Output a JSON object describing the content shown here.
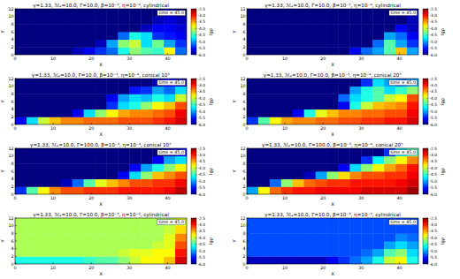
{
  "chart_data": [
    {
      "type": "heatmap",
      "title": "γ=1.33, ℳₐ=10.0, Γ=10.0, β=10⁻³, η=10⁻⁴, cylindrical",
      "xlabel": "X",
      "ylabel": "Y",
      "annotation": "time = 45.0",
      "xlim": [
        0,
        45
      ],
      "ylim": [
        0,
        12
      ],
      "xticks": [
        0,
        10,
        20,
        30,
        40
      ],
      "yticks": [
        0,
        2,
        4,
        6,
        8,
        10,
        12
      ],
      "colorbar_label": "lgρ",
      "zlim": [
        -6,
        -2.5
      ],
      "zticks": [
        {
          "value": -6,
          "label": "-6.0"
        },
        -5.5,
        {
          "value": -5,
          "label": "-5.0"
        },
        -4.5,
        {
          "value": -4,
          "label": "-4.0"
        },
        -3.5,
        {
          "value": -3,
          "label": "-3.0"
        },
        -2.5
      ],
      "cells": [
        [
          -6,
          -6,
          -6,
          -6,
          -6,
          -5.8,
          -5.6,
          -5.4,
          -5.2,
          -4.6,
          -4.2,
          -4.4,
          -4.5,
          -3.8,
          -5.2
        ],
        [
          -6,
          -6,
          -6,
          -6,
          -6,
          -6,
          -6,
          -5.8,
          -5.0,
          -4.2,
          -4.0,
          -4.8,
          -4.3,
          -5.0,
          -5.4
        ],
        [
          -6,
          -6,
          -6,
          -6,
          -6,
          -6,
          -6,
          -6,
          -6,
          -5.2,
          -4.6,
          -4.8,
          -5.4,
          -5.5,
          -5.6
        ],
        [
          -6,
          -6,
          -6,
          -6,
          -6,
          -6,
          -6,
          -6,
          -6,
          -6,
          -6,
          -5.8,
          -5.6,
          -5.6,
          -5.7
        ],
        [
          -6,
          -6,
          -6,
          -6,
          -6,
          -6,
          -6,
          -6,
          -6,
          -6,
          -6,
          -6,
          -5.8,
          -5.7,
          -5.8
        ],
        [
          -6,
          -6,
          -6,
          -6,
          -6,
          -6,
          -6,
          -6,
          -6,
          -6,
          -6,
          -6,
          -6,
          -5.8,
          -6
        ]
      ]
    },
    {
      "type": "heatmap",
      "title": "γ=1.33, ℳₐ=10.0, Γ=10.0, β=10⁻⁵, η=10⁻⁴, cylindrical",
      "xlabel": "X",
      "ylabel": "Y",
      "annotation": "time = 45.0",
      "xlim": [
        0,
        45
      ],
      "ylim": [
        0,
        12
      ],
      "xticks": [
        0,
        10,
        20,
        30,
        40
      ],
      "yticks": [
        0,
        2,
        4,
        6,
        8,
        10,
        12
      ],
      "colorbar_label": "lgρ",
      "zlim": [
        -6,
        -2.5
      ],
      "zticks": [
        {
          "value": -6,
          "label": "-6.0"
        },
        -5.5,
        {
          "value": -5,
          "label": "-5.0"
        },
        -4.5,
        {
          "value": -4,
          "label": "-4.0"
        },
        -3.5,
        {
          "value": -3,
          "label": "-3.0"
        },
        -2.5
      ],
      "cells": [
        [
          -6,
          -6,
          -6,
          -6,
          -6,
          -6,
          -6,
          -6,
          -6,
          -5.6,
          -5.2,
          -5.0,
          -4.4,
          -3.6,
          -5.0
        ],
        [
          -6,
          -6,
          -6,
          -6,
          -6,
          -6,
          -6,
          -6,
          -6,
          -6,
          -6,
          -5.2,
          -4.4,
          -5.0,
          -5.4
        ],
        [
          -6,
          -6,
          -6,
          -6,
          -6,
          -6,
          -6,
          -6,
          -6,
          -6,
          -6,
          -6,
          -5.0,
          -5.2,
          -5.6
        ],
        [
          -6,
          -6,
          -6,
          -6,
          -6,
          -6,
          -6,
          -6,
          -6,
          -6,
          -6,
          -6,
          -6,
          -5.6,
          -5.8
        ],
        [
          -6,
          -6,
          -6,
          -6,
          -6,
          -6,
          -6,
          -6,
          -6,
          -6,
          -6,
          -6,
          -6,
          -6,
          -5.8
        ],
        [
          -6,
          -6,
          -6,
          -6,
          -6,
          -6,
          -6,
          -6,
          -6,
          -6,
          -6,
          -6,
          -6,
          -6,
          -5.8
        ]
      ]
    },
    {
      "type": "heatmap",
      "title": "γ=1.33, ℳₐ=10.0, Γ=10.0, β=10⁻³, η=10⁻⁴, conical 10°",
      "xlabel": "X",
      "ylabel": "Y",
      "annotation": "time = 45.0",
      "xlim": [
        0,
        45
      ],
      "ylim": [
        0,
        12
      ],
      "xticks": [
        0,
        10,
        20,
        30,
        40
      ],
      "yticks": [
        0,
        2,
        4,
        6,
        8,
        10,
        12
      ],
      "colorbar_label": "lgρ",
      "zlim": [
        -6,
        -2.5
      ],
      "zticks": [
        {
          "value": -6,
          "label": "-6.0"
        },
        -5.5,
        {
          "value": -5,
          "label": "-5.0"
        },
        -4.5,
        {
          "value": -4,
          "label": "-4.0"
        },
        -3.5,
        {
          "value": -3,
          "label": "-3.0"
        },
        -2.5
      ],
      "cells": [
        [
          -5.6,
          -4.8,
          -4.0,
          -3.6,
          -3.4,
          -3.4,
          -3.3,
          -3.3,
          -3.3,
          -3.2,
          -3.2,
          -3.2,
          -3.1,
          -3.0,
          -2.8
        ],
        [
          -6,
          -6,
          -6,
          -6,
          -6,
          -5.6,
          -4.8,
          -4.2,
          -3.8,
          -3.5,
          -3.4,
          -3.4,
          -3.3,
          -3.2,
          -2.9
        ],
        [
          -6,
          -6,
          -6,
          -6,
          -6,
          -6,
          -6,
          -6,
          -5.4,
          -4.8,
          -4.6,
          -4.2,
          -3.8,
          -3.6,
          -3.2
        ],
        [
          -6,
          -6,
          -6,
          -6,
          -6,
          -6,
          -6,
          -6,
          -5.6,
          -5.0,
          -4.8,
          -4.9,
          -4.6,
          -4.8,
          -4.0
        ],
        [
          -6,
          -6,
          -6,
          -6,
          -6,
          -6,
          -6,
          -6,
          -6,
          -6,
          -5.5,
          -5.4,
          -5.0,
          -5.2,
          -4.8
        ],
        [
          -6,
          -6,
          -6,
          -6,
          -6,
          -6,
          -6,
          -6,
          -6,
          -6,
          -6,
          -6,
          -5.8,
          -5.6,
          -5.8
        ]
      ]
    },
    {
      "type": "heatmap",
      "title": "γ=1.33, ℳₐ=10.0, Γ=10.0, β=10⁻³, η=10⁻⁴, conical 20°",
      "xlabel": "X",
      "ylabel": "Y",
      "annotation": "time = 45.0",
      "xlim": [
        0,
        45
      ],
      "ylim": [
        0,
        12
      ],
      "xticks": [
        0,
        10,
        20,
        30,
        40
      ],
      "yticks": [
        0,
        2,
        4,
        6,
        8,
        10,
        12
      ],
      "colorbar_label": "lgρ",
      "zlim": [
        -6,
        -2.5
      ],
      "zticks": [
        {
          "value": -6,
          "label": "-6.0"
        },
        -5.5,
        {
          "value": -5,
          "label": "-5.0"
        },
        -4.5,
        {
          "value": -4,
          "label": "-4.0"
        },
        -3.5,
        {
          "value": -3,
          "label": "-3.0"
        },
        -2.5
      ],
      "cells": [
        [
          -5.4,
          -4.4,
          -3.8,
          -3.5,
          -3.4,
          -3.4,
          -3.3,
          -3.3,
          -3.2,
          -3.2,
          -3.1,
          -3.1,
          -3.0,
          -3.0,
          -2.8
        ],
        [
          -6,
          -6,
          -6,
          -6,
          -5.6,
          -4.6,
          -3.9,
          -3.6,
          -3.4,
          -3.4,
          -3.3,
          -3.3,
          -3.2,
          -3.2,
          -2.9
        ],
        [
          -6,
          -6,
          -6,
          -6,
          -6,
          -6,
          -6,
          -6,
          -5.6,
          -4.6,
          -4.0,
          -3.6,
          -3.5,
          -3.4,
          -3.0
        ],
        [
          -6,
          -6,
          -6,
          -6,
          -6,
          -6,
          -6,
          -6,
          -5.2,
          -4.8,
          -4.6,
          -4.4,
          -4.0,
          -3.8,
          -3.2
        ],
        [
          -6,
          -6,
          -6,
          -6,
          -6,
          -6,
          -6,
          -6,
          -6,
          -5.0,
          -4.6,
          -4.4,
          -4.8,
          -4.5,
          -4.2
        ],
        [
          -6,
          -6,
          -6,
          -6,
          -6,
          -6,
          -6,
          -6,
          -6,
          -6,
          -5.4,
          -4.8,
          -5.0,
          -5.2,
          -5.0
        ]
      ]
    },
    {
      "type": "heatmap",
      "title": "γ=1.33, ℳₐ=10.0, Γ=100.0, β=10⁻³, η=10⁻⁴, conical 10°",
      "xlabel": "X",
      "ylabel": "Y",
      "annotation": "time = 45.0",
      "xlim": [
        0,
        45
      ],
      "ylim": [
        0,
        12
      ],
      "xticks": [
        0,
        10,
        20,
        30,
        40
      ],
      "yticks": [
        0,
        2,
        4,
        6,
        8,
        10,
        12
      ],
      "colorbar_label": "lgρ",
      "zlim": [
        -6,
        -2.5
      ],
      "zticks": [
        {
          "value": -6,
          "label": "-6.0"
        },
        -5.5,
        {
          "value": -5,
          "label": "-5.0"
        },
        -4.5,
        {
          "value": -4,
          "label": "-4.0"
        },
        -3.5,
        {
          "value": -3,
          "label": "-3.0"
        },
        -2.5
      ],
      "cells": [
        [
          -5.4,
          -4.4,
          -3.8,
          -3.4,
          -3.2,
          -3.2,
          -3.1,
          -3.1,
          -3.1,
          -3.0,
          -3.0,
          -3.0,
          -3.0,
          -2.9,
          -2.7
        ],
        [
          -6,
          -6,
          -6,
          -6,
          -5.8,
          -5.2,
          -4.4,
          -3.9,
          -3.6,
          -3.4,
          -3.2,
          -3.2,
          -3.1,
          -3.1,
          -2.9
        ],
        [
          -6,
          -6,
          -6,
          -6,
          -6,
          -6,
          -6,
          -6,
          -6,
          -5.6,
          -4.8,
          -4.2,
          -3.6,
          -3.4,
          -3.2
        ],
        [
          -6,
          -6,
          -6,
          -6,
          -6,
          -6,
          -6,
          -6,
          -6,
          -6,
          -5.6,
          -5.0,
          -4.6,
          -4.2,
          -3.8
        ],
        [
          -6,
          -6,
          -6,
          -6,
          -6,
          -6,
          -6,
          -6,
          -6,
          -6,
          -6,
          -6,
          -5.6,
          -5.0,
          -4.8
        ],
        [
          -6,
          -6,
          -6,
          -6,
          -6,
          -6,
          -6,
          -6,
          -6,
          -6,
          -6,
          -6,
          -6,
          -5.8,
          -5.6
        ]
      ]
    },
    {
      "type": "heatmap",
      "title": "γ=1.33, ℳₐ=10.0, Γ=100.0, β=10⁻³, η=10⁻⁴, conical 20°",
      "xlabel": "X",
      "ylabel": "Y",
      "annotation": "time = 45.0",
      "xlim": [
        0,
        45
      ],
      "ylim": [
        0,
        12
      ],
      "xticks": [
        0,
        10,
        20,
        30,
        40
      ],
      "yticks": [
        0,
        2,
        4,
        6,
        8,
        10,
        12
      ],
      "colorbar_label": "lgρ",
      "zlim": [
        -6,
        -2.5
      ],
      "zticks": [
        {
          "value": -6,
          "label": "-6.0"
        },
        -5.5,
        {
          "value": -5,
          "label": "-5.0"
        },
        -4.5,
        {
          "value": -4,
          "label": "-4.0"
        },
        -3.5,
        {
          "value": -3,
          "label": "-3.0"
        },
        -2.5
      ],
      "cells": [
        [
          -5.0,
          -3.8,
          -3.3,
          -3.1,
          -3.0,
          -3.0,
          -2.9,
          -2.9,
          -2.9,
          -2.9,
          -2.8,
          -2.8,
          -2.8,
          -2.8,
          -2.6
        ],
        [
          -6,
          -6,
          -5.2,
          -4.2,
          -3.6,
          -3.3,
          -3.2,
          -3.1,
          -3.1,
          -3.0,
          -3.0,
          -3.0,
          -3.0,
          -2.9,
          -2.8
        ],
        [
          -6,
          -6,
          -6,
          -6,
          -6,
          -5.8,
          -5.0,
          -4.2,
          -3.7,
          -3.4,
          -3.2,
          -3.2,
          -3.1,
          -3.1,
          -2.9
        ],
        [
          -6,
          -6,
          -6,
          -6,
          -6,
          -6,
          -6,
          -6,
          -5.6,
          -4.8,
          -4.2,
          -3.8,
          -3.5,
          -3.3,
          -3.0
        ],
        [
          -6,
          -6,
          -6,
          -6,
          -6,
          -6,
          -6,
          -6,
          -6,
          -6,
          -5.4,
          -4.7,
          -4.2,
          -3.8,
          -3.4
        ],
        [
          -6,
          -6,
          -6,
          -6,
          -6,
          -6,
          -6,
          -6,
          -6,
          -6,
          -6,
          -6,
          -5.4,
          -4.8,
          -4.4
        ]
      ]
    },
    {
      "type": "heatmap",
      "title": "γ=1.33, ℳₐ=10.0, Γ=10.0, β=10⁻³, η=10⁻², cylindrical",
      "xlabel": "X",
      "ylabel": "Y",
      "annotation": "time = 45.0",
      "xlim": [
        0,
        45
      ],
      "ylim": [
        0,
        12
      ],
      "xticks": [
        0,
        10,
        20,
        30,
        40
      ],
      "yticks": [
        0,
        2,
        4,
        6,
        8,
        10,
        12
      ],
      "colorbar_label": "lgρ",
      "zlim": [
        -6,
        -2.5
      ],
      "zticks": [
        {
          "value": -6,
          "label": "-6.0"
        },
        -5.5,
        {
          "value": -5,
          "label": "-5.0"
        },
        -4.5,
        {
          "value": -4,
          "label": "-4.0"
        },
        -3.5,
        {
          "value": -3,
          "label": "-3.0"
        },
        -2.5
      ],
      "cells": [
        [
          -4.6,
          -4.6,
          -4.6,
          -4.6,
          -4.6,
          -4.6,
          -4.5,
          -4.4,
          -4.4,
          -4.2,
          -4.0,
          -3.8,
          -3.8,
          -3.6,
          -2.8
        ],
        [
          -4.1,
          -4.1,
          -4.1,
          -4.1,
          -4.1,
          -4.1,
          -4.1,
          -4.1,
          -4.1,
          -4.0,
          -3.9,
          -3.9,
          -3.8,
          -3.8,
          -3.0
        ],
        [
          -4.1,
          -4.1,
          -4.1,
          -4.1,
          -4.1,
          -4.1,
          -4.1,
          -4.1,
          -4.1,
          -4.1,
          -4.1,
          -4.1,
          -4.0,
          -3.9,
          -3.2
        ],
        [
          -4.1,
          -4.1,
          -4.1,
          -4.1,
          -4.1,
          -4.1,
          -4.1,
          -4.1,
          -4.1,
          -4.1,
          -4.1,
          -4.1,
          -4.1,
          -3.9,
          -3.4
        ],
        [
          -4.1,
          -4.1,
          -4.1,
          -4.1,
          -4.1,
          -4.1,
          -4.1,
          -4.1,
          -4.1,
          -4.1,
          -4.1,
          -4.1,
          -4.1,
          -4.0,
          -3.7
        ],
        [
          -4.1,
          -4.1,
          -4.1,
          -4.1,
          -4.1,
          -4.1,
          -4.1,
          -4.1,
          -4.1,
          -4.1,
          -4.1,
          -4.1,
          -4.1,
          -4.1,
          -3.9
        ]
      ]
    },
    {
      "type": "heatmap",
      "title": "γ=1.33, ℳₐ=10.0, Γ=10.0, β=10⁻³, η=10⁻³, cylindrical",
      "xlabel": "X",
      "ylabel": "Y",
      "annotation": "time = 45.0",
      "xlim": [
        0,
        45
      ],
      "ylim": [
        0,
        12
      ],
      "xticks": [
        0,
        10,
        20,
        30,
        40
      ],
      "yticks": [
        0,
        2,
        4,
        6,
        8,
        10,
        12
      ],
      "colorbar_label": "lgρ",
      "zlim": [
        -6,
        -2.5
      ],
      "zticks": [
        {
          "value": -6,
          "label": "-6.0"
        },
        -5.5,
        {
          "value": -5,
          "label": "-5.0"
        },
        -4.5,
        {
          "value": -4,
          "label": "-4.0"
        },
        -3.5,
        {
          "value": -3,
          "label": "-3.0"
        },
        -2.5
      ],
      "cells": [
        [
          -5.8,
          -5.8,
          -5.8,
          -5.8,
          -5.8,
          -5.8,
          -5.8,
          -5.6,
          -5.4,
          -5.2,
          -5.0,
          -4.6,
          -4.0,
          -3.8,
          -4.6
        ],
        [
          -5.3,
          -5.3,
          -5.3,
          -5.3,
          -5.3,
          -5.3,
          -5.3,
          -5.3,
          -5.3,
          -5.3,
          -5.2,
          -5.0,
          -4.4,
          -4.2,
          -4.8
        ],
        [
          -5.3,
          -5.3,
          -5.3,
          -5.3,
          -5.3,
          -5.3,
          -5.3,
          -5.3,
          -5.3,
          -5.3,
          -5.3,
          -5.3,
          -5.0,
          -4.8,
          -5.0
        ],
        [
          -5.3,
          -5.3,
          -5.3,
          -5.3,
          -5.3,
          -5.3,
          -5.3,
          -5.3,
          -5.3,
          -5.3,
          -5.3,
          -5.3,
          -5.3,
          -5.1,
          -5.2
        ],
        [
          -5.3,
          -5.3,
          -5.3,
          -5.3,
          -5.3,
          -5.3,
          -5.3,
          -5.3,
          -5.3,
          -5.3,
          -5.3,
          -5.3,
          -5.3,
          -5.3,
          -5.3
        ],
        [
          -5.3,
          -5.3,
          -5.3,
          -5.3,
          -5.3,
          -5.3,
          -5.3,
          -5.3,
          -5.3,
          -5.3,
          -5.3,
          -5.3,
          -5.3,
          -5.3,
          -5.3
        ]
      ]
    }
  ]
}
